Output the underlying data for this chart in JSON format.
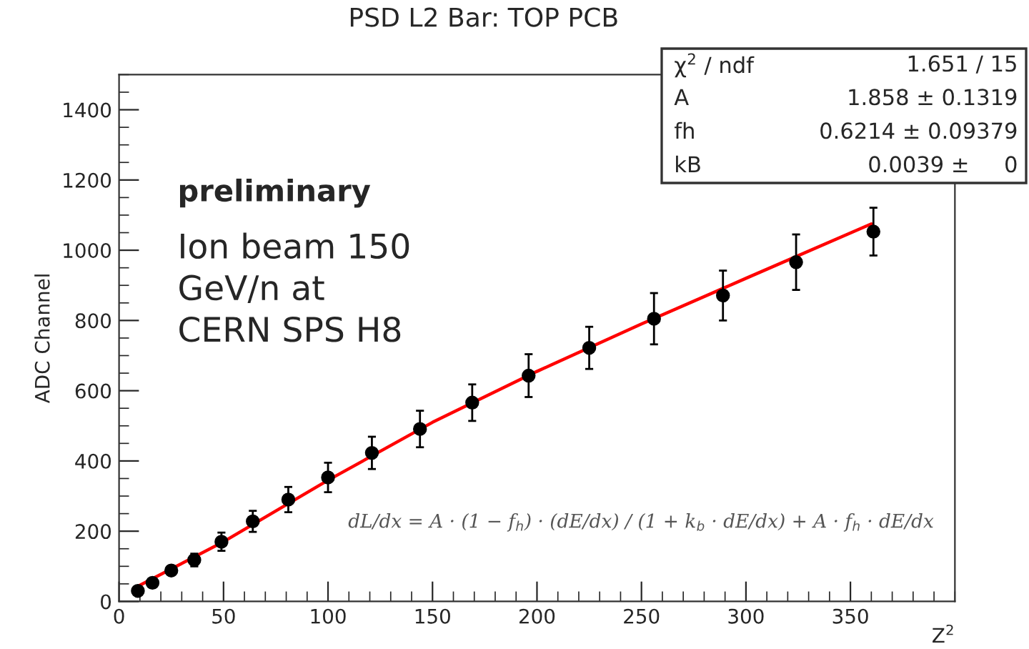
{
  "chart_data": {
    "type": "scatter",
    "title": "PSD L2 Bar: TOP PCB",
    "xlabel": "Z$^{2}$",
    "ylabel": "ADC Channel",
    "xlim": [
      0,
      400
    ],
    "xticks": [
      0,
      50,
      100,
      150,
      200,
      250,
      300,
      350
    ],
    "ylim": [
      0,
      1500
    ],
    "yticks": [
      0,
      200,
      400,
      600,
      800,
      1000,
      1200,
      1400
    ],
    "grid": false,
    "legend": false,
    "series": [
      {
        "color": "#000000",
        "marker": "circle",
        "x": [
          9,
          16,
          25,
          36,
          49,
          64,
          81,
          100,
          121,
          144,
          169,
          196,
          225,
          256,
          289,
          324,
          361
        ],
        "values": [
          30,
          53,
          88,
          118,
          170,
          228,
          290,
          353,
          423,
          491,
          566,
          643,
          722,
          805,
          871,
          966,
          1053
        ],
        "errors": [
          8,
          11,
          13,
          18,
          26,
          30,
          36,
          42,
          46,
          52,
          52,
          61,
          60,
          73,
          71,
          79,
          68
        ]
      },
      {
        "type": "line",
        "color": "#ff0000",
        "line_style": "solid",
        "marker": "none",
        "x": [
          9,
          50,
          100,
          150,
          200,
          250,
          300,
          360
        ],
        "values": [
          43,
          170,
          345,
          510,
          655,
          790,
          920,
          1075
        ]
      }
    ],
    "annotations": [
      "preliminary",
      "Ion beam 150\nGeV/n at\nCERN SPS H8",
      "dL/dx = A · (1 − f$_{h}$) · (dE/dx) / (1 + k$_{b}$ · dE/dx) + A · f$_{h}$ · dE/dx",
      "χ$^{2}$ / ndf",
      "1.651 / 15",
      "A",
      "1.858 ± 0.1319",
      "fh",
      "0.6214 ± 0.09379",
      "kB",
      "0.0039 ±     0"
    ]
  }
}
